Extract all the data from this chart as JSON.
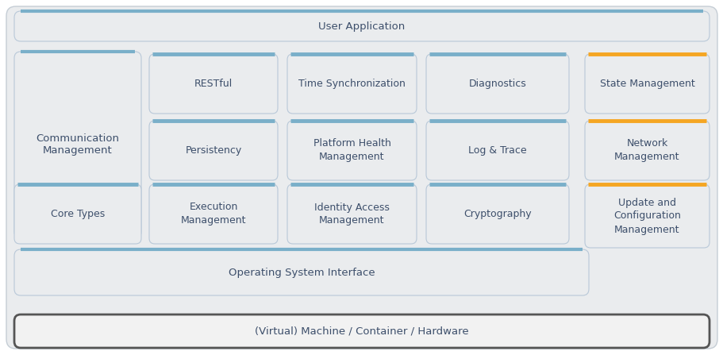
{
  "bg_color": "#eaecee",
  "box_fill": "#eaecee",
  "inner_bg": "#eaecee",
  "box_stroke_blue": "#7aafc9",
  "box_stroke_orange": "#f5a623",
  "box_edge_color": "#b8c8d8",
  "text_color": "#3d4f6b",
  "outer_bg": "#ffffff",
  "title_text": "User Application",
  "bottom_text": "(Virtual) Machine / Container / Hardware",
  "os_text": "Operating System Interface",
  "comm_text": "Communication\nManagement",
  "fontsize": 9.0,
  "fontfamily": "DejaVu Sans",
  "all_boxes": [
    {
      "label": "RESTful",
      "col": 1,
      "row": 0,
      "border": "blue"
    },
    {
      "label": "Time Synchronization",
      "col": 2,
      "row": 0,
      "border": "blue"
    },
    {
      "label": "Diagnostics",
      "col": 3,
      "row": 0,
      "border": "blue"
    },
    {
      "label": "State Management",
      "col": 4,
      "row": 0,
      "border": "orange"
    },
    {
      "label": "Persistency",
      "col": 1,
      "row": 1,
      "border": "blue"
    },
    {
      "label": "Platform Health\nManagement",
      "col": 2,
      "row": 1,
      "border": "blue"
    },
    {
      "label": "Log & Trace",
      "col": 3,
      "row": 1,
      "border": "blue"
    },
    {
      "label": "Network\nManagement",
      "col": 4,
      "row": 1,
      "border": "orange"
    },
    {
      "label": "Core Types",
      "col": 0,
      "row": 2,
      "border": "blue"
    },
    {
      "label": "Execution\nManagement",
      "col": 1,
      "row": 2,
      "border": "blue"
    },
    {
      "label": "Identity Access\nManagement",
      "col": 2,
      "row": 2,
      "border": "blue"
    },
    {
      "label": "Cryptography",
      "col": 3,
      "row": 2,
      "border": "blue"
    },
    {
      "label": "Update and\nConfiguration\nManagement",
      "col": 4,
      "row": 2,
      "border": "orange"
    }
  ]
}
